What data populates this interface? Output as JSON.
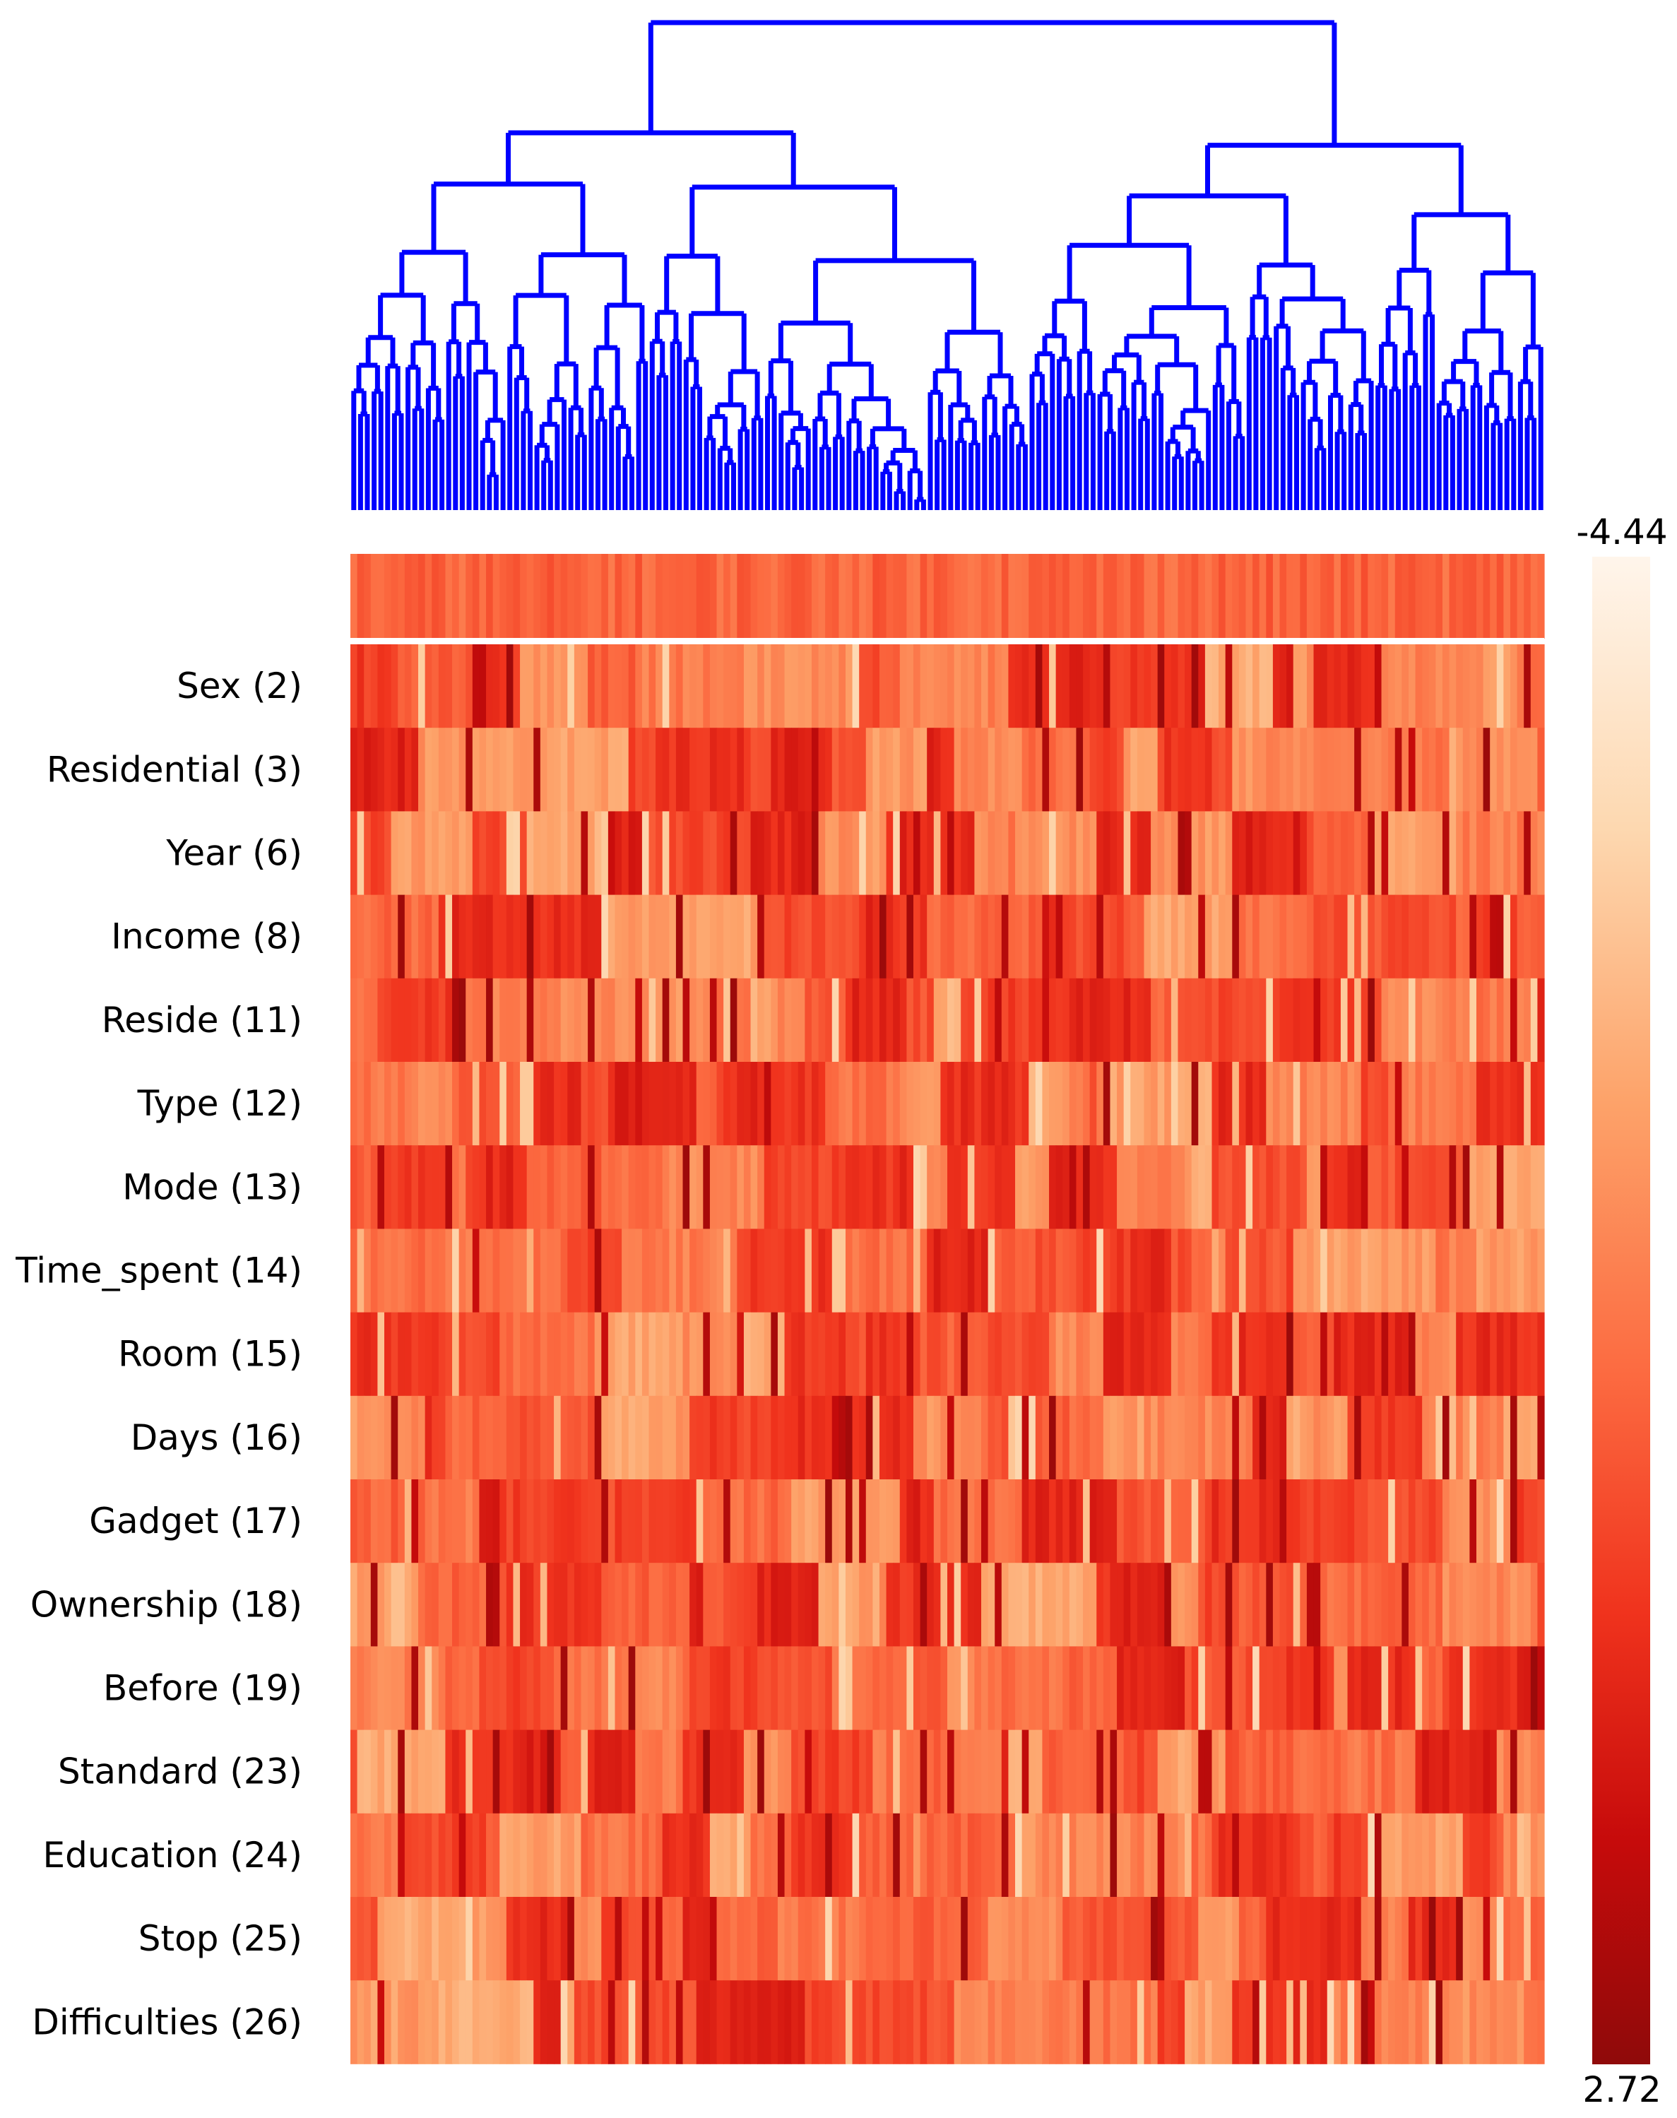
{
  "chart_data": {
    "type": "heatmap",
    "title": "",
    "rows": [
      "Sex (2)",
      "Residential (3)",
      "Year (6)",
      "Income (8)",
      "Reside (11)",
      "Type (12)",
      "Mode (13)",
      "Time_spent (14)",
      "Room (15)",
      "Days (16)",
      "Gadget (17)",
      "Ownership (18)",
      "Before (19)",
      "Standard (23)",
      "Education (24)",
      "Stop (25)",
      "Difficulties (26)"
    ],
    "column_count": 176,
    "colorbar": {
      "min_label": "-4.44",
      "max_label": "2.72",
      "min": -4.44,
      "max": 2.72,
      "colors": [
        "#fff5eb",
        "#fdd0a2",
        "#fda36a",
        "#fc6b41",
        "#f0331d",
        "#c70b0b",
        "#9a0a0a"
      ]
    },
    "summary_row": true,
    "dendrogram": {
      "position": "top",
      "color": "#0000ff",
      "leaves": 176
    }
  }
}
